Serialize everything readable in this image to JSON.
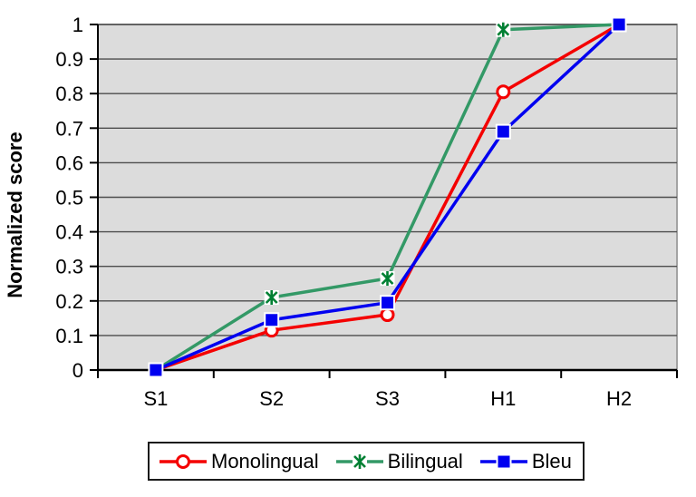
{
  "chart_data": {
    "type": "line",
    "title": "",
    "xlabel": "",
    "ylabel": "Normalized score",
    "categories": [
      "S1",
      "S2",
      "S3",
      "H1",
      "H2"
    ],
    "ylim": [
      0,
      1
    ],
    "yticks": [
      "0",
      "0.1",
      "0.2",
      "0.3",
      "0.4",
      "0.5",
      "0.6",
      "0.7",
      "0.8",
      "0.9",
      "1"
    ],
    "grid": "horizontal",
    "legend_position": "bottom",
    "colors": {
      "plot_background": "#DCDCDC",
      "plot_border": "#A3A3A3",
      "gridline": "#4d4d4d",
      "axis": "#000000",
      "text": "#000000"
    },
    "series": [
      {
        "name": "Monolingual",
        "color": "#F40000",
        "marker": "circle-open",
        "marker_color": "#F40000",
        "values": [
          0,
          0.115,
          0.16,
          0.805,
          1.0
        ]
      },
      {
        "name": "Bilingual",
        "color": "#339966",
        "marker": "star",
        "marker_color": "#008033",
        "values": [
          0,
          0.21,
          0.265,
          0.985,
          1.0
        ]
      },
      {
        "name": "Bleu",
        "color": "#0000F0",
        "marker": "square",
        "marker_color": "#0000F0",
        "values": [
          0,
          0.145,
          0.195,
          0.69,
          1.0
        ]
      }
    ]
  }
}
